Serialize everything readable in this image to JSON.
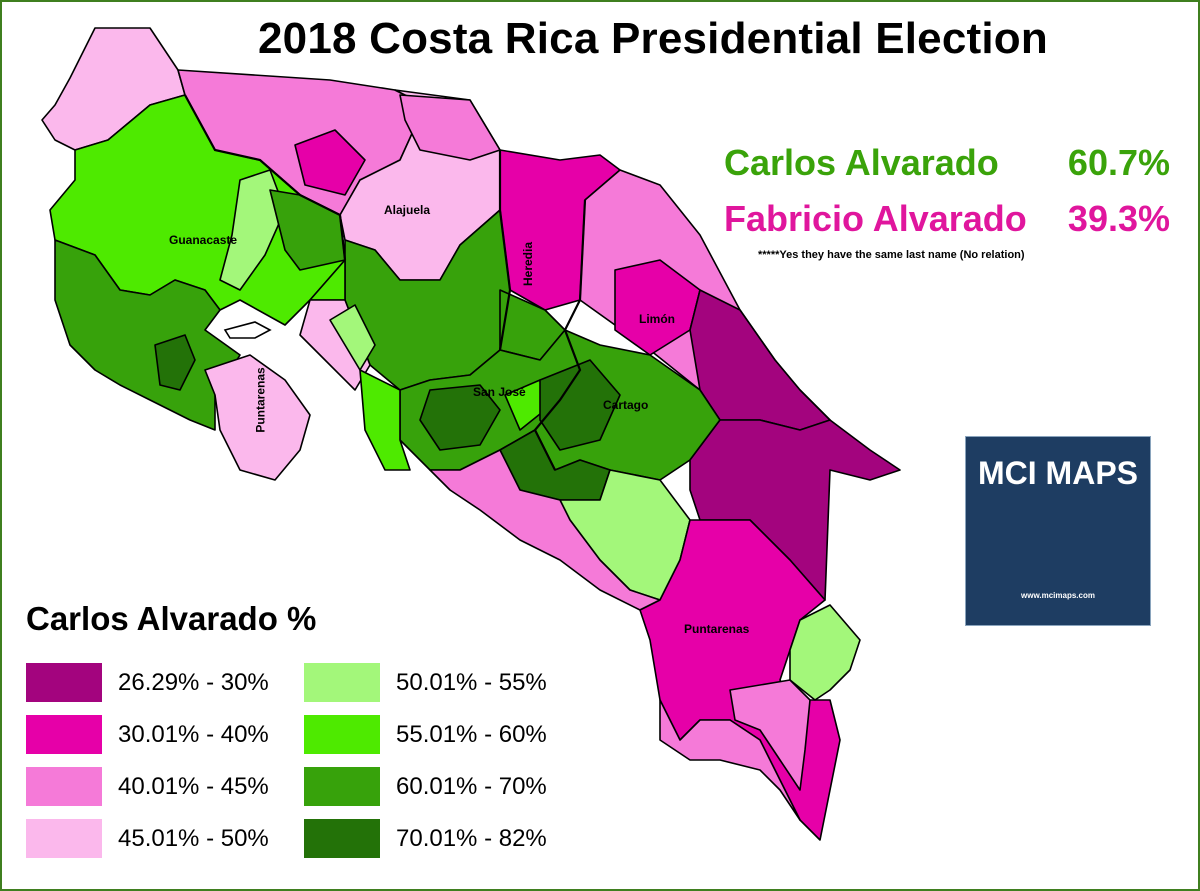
{
  "title": "2018 Costa Rica Presidential Election",
  "results": [
    {
      "name": "Carlos Alvarado",
      "percent": "60.7%",
      "color": "#3aa30a"
    },
    {
      "name": "Fabricio Alvarado",
      "percent": "39.3%",
      "color": "#e0169d"
    }
  ],
  "note": "*****Yes they have the same last name  (No relation)",
  "provinces": {
    "guanacaste": "Guanacaste",
    "alajuela": "Alajuela",
    "heredia": "Heredia",
    "limon": "Limón",
    "san_jose": "San José",
    "cartago": "Cartago",
    "puntarenas_north": "Puntarenas",
    "puntarenas_south": "Puntarenas"
  },
  "legend": {
    "title": "Carlos Alvarado %",
    "items": [
      {
        "label": "26.29% - 30%",
        "color": "#a3047e"
      },
      {
        "label": "30.01% - 40%",
        "color": "#e600a8"
      },
      {
        "label": "40.01% - 45%",
        "color": "#f57ad8"
      },
      {
        "label": "45.01% - 50%",
        "color": "#fbb8ec"
      },
      {
        "label": "50.01% - 55%",
        "color": "#a3f77a"
      },
      {
        "label": "55.01% - 60%",
        "color": "#4eea00"
      },
      {
        "label": "60.01% - 70%",
        "color": "#37a20b"
      },
      {
        "label": "70.01% - 82%",
        "color": "#237208"
      }
    ]
  },
  "logo": {
    "title": "MCI MAPS",
    "url": "www.mcimaps.com",
    "icon": "us-map-icon"
  }
}
